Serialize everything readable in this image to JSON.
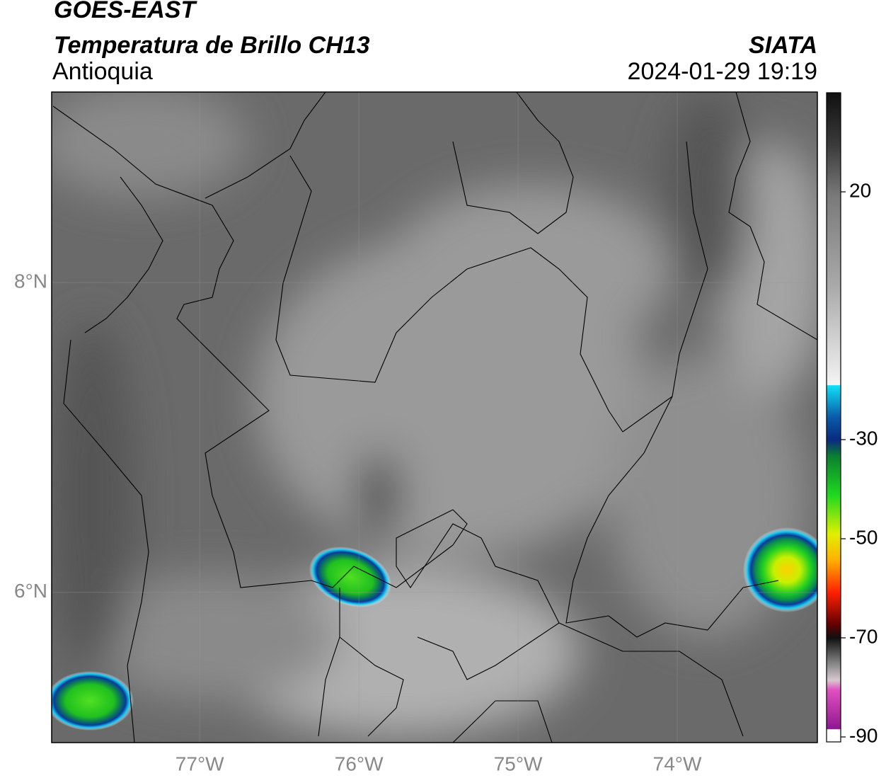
{
  "header": {
    "title": "GOES-EAST",
    "product": "Temperatura de Brillo CH13",
    "region": "Antioquia",
    "source": "SIATA",
    "datetime": "2024-01-29 19:19"
  },
  "map": {
    "lat_lim": [
      5.03,
      9.23
    ],
    "lon_lim": [
      -77.93,
      -73.12
    ],
    "lat_ticks": [
      {
        "value": 8,
        "label": "8°N"
      },
      {
        "value": 6,
        "label": "6°N"
      }
    ],
    "lon_ticks": [
      {
        "value": -77,
        "label": "77°W"
      },
      {
        "value": -76,
        "label": "76°W"
      },
      {
        "value": -75,
        "label": "75°W"
      },
      {
        "value": -74,
        "label": "74°W"
      }
    ]
  },
  "colorbar": {
    "lim": [
      -91,
      40
    ],
    "ticks": [
      20,
      -30,
      -50,
      -70,
      -90
    ]
  }
}
